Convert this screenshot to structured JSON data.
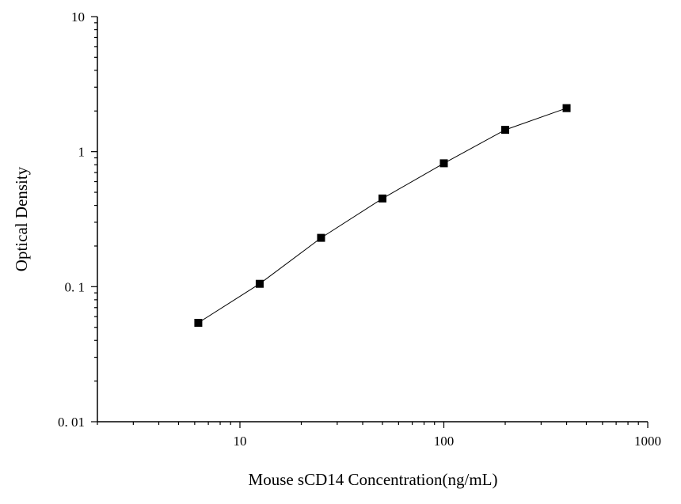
{
  "chart_data": {
    "type": "scatter",
    "title": "",
    "xlabel": "Mouse sCD14 Concentration(ng/mL)",
    "ylabel": "Optical Density",
    "x_scale": "log",
    "y_scale": "log",
    "xlim": [
      2,
      1000
    ],
    "ylim": [
      0.01,
      10
    ],
    "x_ticks": [
      {
        "value": 10,
        "label": "10"
      },
      {
        "value": 100,
        "label": "100"
      },
      {
        "value": 1000,
        "label": "1000"
      }
    ],
    "y_ticks": [
      {
        "value": 0.01,
        "label": "0. 01"
      },
      {
        "value": 0.1,
        "label": "0. 1"
      },
      {
        "value": 1,
        "label": "1"
      },
      {
        "value": 10,
        "label": "10"
      }
    ],
    "grid": false,
    "series": [
      {
        "marker": "square",
        "connected_line": true,
        "color": "#000000",
        "points": [
          {
            "x": 6.25,
            "y": 0.054
          },
          {
            "x": 12.5,
            "y": 0.105
          },
          {
            "x": 25,
            "y": 0.23
          },
          {
            "x": 50,
            "y": 0.45
          },
          {
            "x": 100,
            "y": 0.82
          },
          {
            "x": 200,
            "y": 1.45
          },
          {
            "x": 400,
            "y": 2.1
          }
        ]
      }
    ]
  }
}
